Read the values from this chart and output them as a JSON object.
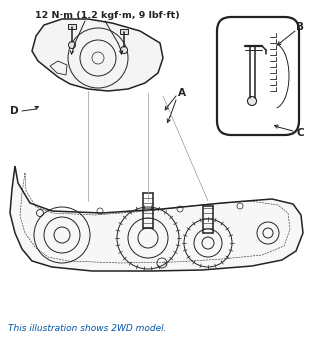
{
  "caption": "This illustration shows 2WD model.",
  "caption_color": "#0055aa",
  "torque_label": "12 N·m (1.2 kgf·m, 9 lbf·ft)",
  "label_A": "A",
  "label_B": "B",
  "label_C": "C",
  "label_D": "D",
  "bg_color": "#ffffff",
  "line_color": "#222222",
  "fig_width": 3.1,
  "fig_height": 3.41,
  "dpi": 100,
  "small_circles": [
    [
      100,
      130,
      3
    ],
    [
      180,
      132,
      3
    ],
    [
      240,
      135,
      3
    ]
  ]
}
